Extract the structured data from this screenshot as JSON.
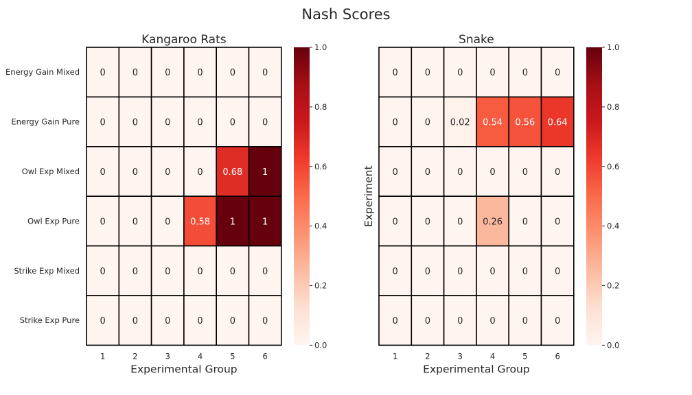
{
  "figure_title": "Nash Scores",
  "chart_data": [
    {
      "type": "heatmap",
      "title": "Kangaroo Rats",
      "xlabel": "Experimental Group",
      "ylabel": "",
      "x": [
        "1",
        "2",
        "3",
        "4",
        "5",
        "6"
      ],
      "y": [
        "Energy Gain Mixed",
        "Energy Gain Pure",
        "Owl Exp Mixed",
        "Owl Exp Pure",
        "Strike Exp Mixed",
        "Strike Exp Pure"
      ],
      "values": [
        [
          0,
          0,
          0,
          0,
          0,
          0
        ],
        [
          0,
          0,
          0,
          0,
          0,
          0
        ],
        [
          0,
          0,
          0,
          0,
          0.68,
          1
        ],
        [
          0,
          0,
          0,
          0.58,
          1,
          1
        ],
        [
          0,
          0,
          0,
          0,
          0,
          0
        ],
        [
          0,
          0,
          0,
          0,
          0,
          0
        ]
      ],
      "colorscale": "Reds",
      "vmin": 0,
      "vmax": 1,
      "colorbar_ticks": [
        "0.0",
        "0.2",
        "0.4",
        "0.6",
        "0.8",
        "1.0"
      ],
      "show_ytick_labels": true
    },
    {
      "type": "heatmap",
      "title": "Snake",
      "xlabel": "Experimental Group",
      "ylabel": "Experiment",
      "x": [
        "1",
        "2",
        "3",
        "4",
        "5",
        "6"
      ],
      "y": [
        "Energy Gain Mixed",
        "Energy Gain Pure",
        "Owl Exp Mixed",
        "Owl Exp Pure",
        "Strike Exp Mixed",
        "Strike Exp Pure"
      ],
      "values": [
        [
          0,
          0,
          0,
          0,
          0,
          0
        ],
        [
          0,
          0,
          0.02,
          0.54,
          0.56,
          0.64
        ],
        [
          0,
          0,
          0,
          0,
          0,
          0
        ],
        [
          0,
          0,
          0,
          0.26,
          0,
          0
        ],
        [
          0,
          0,
          0,
          0,
          0,
          0
        ],
        [
          0,
          0,
          0,
          0,
          0,
          0
        ]
      ],
      "colorscale": "Reds",
      "vmin": 0,
      "vmax": 1,
      "colorbar_ticks": [
        "0.0",
        "0.2",
        "0.4",
        "0.6",
        "0.8",
        "1.0"
      ],
      "show_ytick_labels": false
    }
  ]
}
